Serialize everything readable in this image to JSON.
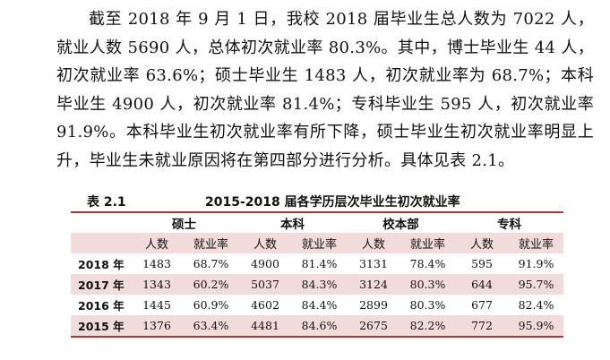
{
  "paragraph": "截至 2018 年 9 月 1 日，我校 2018 届毕业生总人数为 7022 人，就业人数 5690 人，总体初次就业率 80.3%。其中，博士毕业生 44 人，初次就业率 63.6%；硕士毕业生 1483 人，初次就业率为 68.7%；本科毕业生 4900 人，初次就业率 81.4%；专科毕业生 595 人，初次就业率 91.9%。本科毕业生初次就业率有所下降，硕士毕业生初次就业率明显上升，毕业生未就业原因将在第四部分进行分析。具体见表 2.1。",
  "table": {
    "caption_number": "表 2.1",
    "caption_title": "2015-2018 届各学历层次毕业生初次就业率",
    "groups": [
      "硕士",
      "本科",
      "校本部",
      "专科"
    ],
    "sub_headers": [
      "人数",
      "就业率",
      "人数",
      "就业率",
      "人数",
      "就业率",
      "人数",
      "就业率"
    ],
    "rows": [
      {
        "year": "2018 年",
        "cells": [
          "1483",
          "68.7%",
          "4900",
          "81.4%",
          "3131",
          "78.4%",
          "595",
          "91.9%"
        ]
      },
      {
        "year": "2017 年",
        "cells": [
          "1343",
          "60.2%",
          "5037",
          "84.3%",
          "3124",
          "80.3%",
          "644",
          "95.7%"
        ]
      },
      {
        "year": "2016 年",
        "cells": [
          "1445",
          "60.9%",
          "4602",
          "84.4%",
          "2899",
          "80.3%",
          "677",
          "82.4%"
        ]
      },
      {
        "year": "2015 年",
        "cells": [
          "1376",
          "63.4%",
          "4481",
          "84.6%",
          "2675",
          "82.2%",
          "772",
          "95.9%"
        ]
      }
    ],
    "shade_color": "#f2dcdb",
    "rule_color": "#b5332e"
  }
}
